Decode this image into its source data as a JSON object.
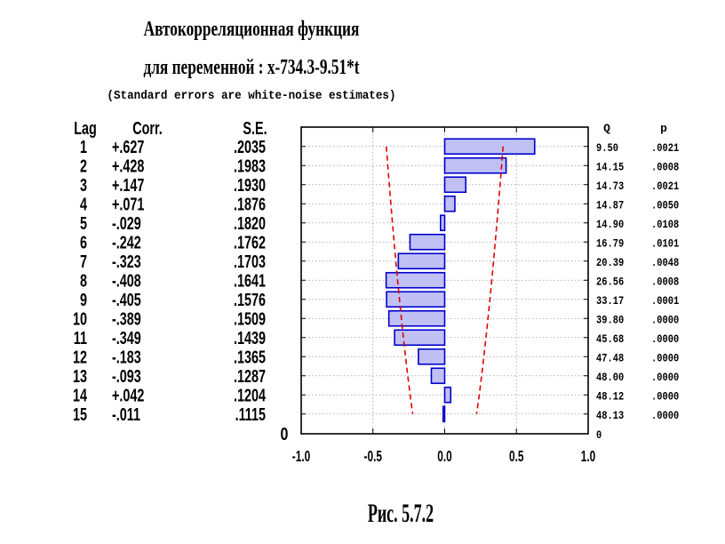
{
  "title_line1": "Автокорреляционная функция",
  "title_line2": "для переменной   : x-734.3-9.51*t",
  "subtitle": "(Standard errors are white-noise estimates)",
  "figure_caption": "Рис. 5.7.2",
  "chart_data": {
    "type": "bar",
    "orientation": "horizontal",
    "columns": {
      "lag": "Lag",
      "corr": "Corr.",
      "se": "S.E.",
      "q": "Q",
      "p": "p"
    },
    "rows": [
      {
        "lag": "1",
        "corr": "+.627",
        "se": ".2035",
        "q": "9.50",
        "p": ".0021"
      },
      {
        "lag": "2",
        "corr": "+.428",
        "se": ".1983",
        "q": "14.15",
        "p": ".0008"
      },
      {
        "lag": "3",
        "corr": "+.147",
        "se": ".1930",
        "q": "14.73",
        "p": ".0021"
      },
      {
        "lag": "4",
        "corr": "+.071",
        "se": ".1876",
        "q": "14.87",
        "p": ".0050"
      },
      {
        "lag": "5",
        "corr": "-.029",
        "se": ".1820",
        "q": "14.90",
        "p": ".0108"
      },
      {
        "lag": "6",
        "corr": "-.242",
        "se": ".1762",
        "q": "16.79",
        "p": ".0101"
      },
      {
        "lag": "7",
        "corr": "-.323",
        "se": ".1703",
        "q": "20.39",
        "p": ".0048"
      },
      {
        "lag": "8",
        "corr": "-.408",
        "se": ".1641",
        "q": "26.56",
        "p": ".0008"
      },
      {
        "lag": "9",
        "corr": "-.405",
        "se": ".1576",
        "q": "33.17",
        "p": ".0001"
      },
      {
        "lag": "10",
        "corr": "-.389",
        "se": ".1509",
        "q": "39.80",
        "p": ".0000"
      },
      {
        "lag": "11",
        "corr": "-.349",
        "se": ".1439",
        "q": "45.68",
        "p": ".0000"
      },
      {
        "lag": "12",
        "corr": "-.183",
        "se": ".1365",
        "q": "47.48",
        "p": ".0000"
      },
      {
        "lag": "13",
        "corr": "-.093",
        "se": ".1287",
        "q": "48.00",
        "p": ".0000"
      },
      {
        "lag": "14",
        "corr": "+.042",
        "se": ".1204",
        "q": "48.12",
        "p": ".0000"
      },
      {
        "lag": "15",
        "corr": "-.011",
        "se": ".1115",
        "q": "48.13",
        "p": ".0000"
      }
    ],
    "xlim": [
      -1.0,
      1.0
    ],
    "xticks": [
      "-1.0",
      "-0.5",
      "0.0",
      "0.5",
      "1.0"
    ],
    "left_axis_end_label": "0",
    "right_axis_end_label": "0",
    "confidence_limit_multiplier": 2,
    "grid": true,
    "colors": {
      "bar_fill": "#c0c0f4",
      "bar_stroke": "#0000cc",
      "confidence_line": "#e00000",
      "grid": "#9a9a9a"
    }
  }
}
